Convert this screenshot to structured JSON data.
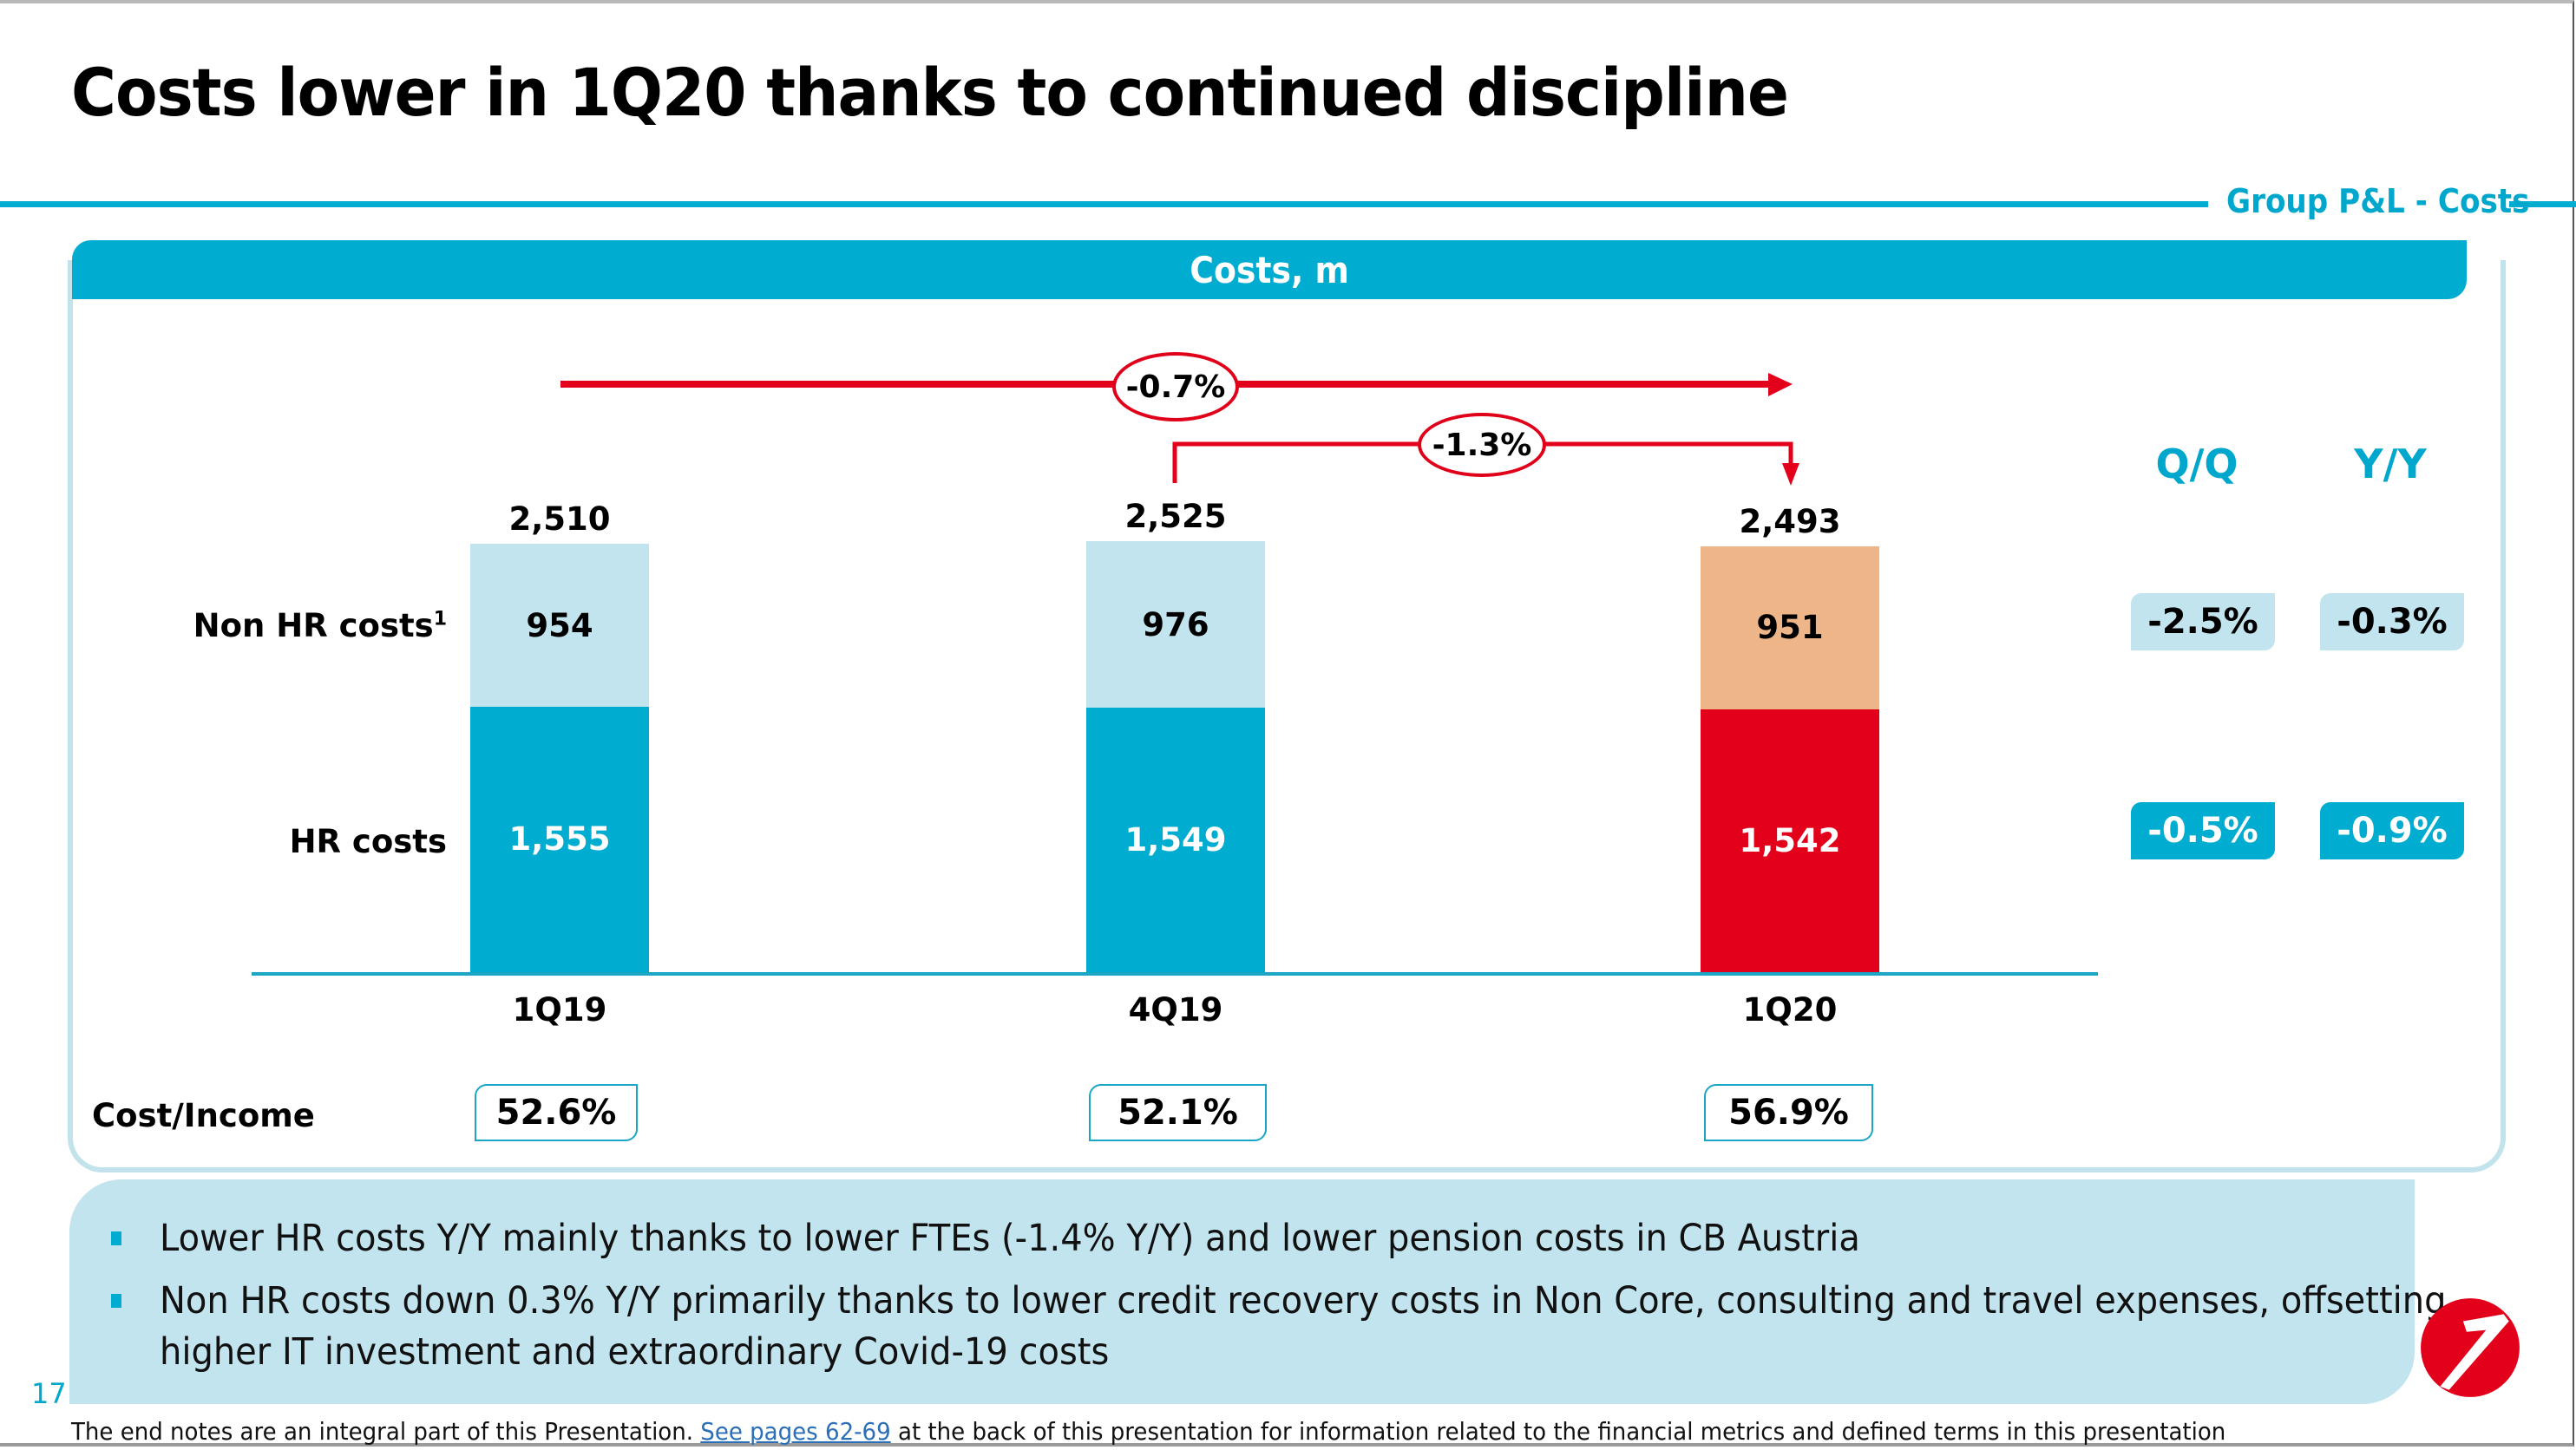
{
  "slide": {
    "title": "Costs lower in 1Q20 thanks to continued discipline",
    "section_label": "Group P&L - Costs",
    "page_number": "17"
  },
  "chart_header": "Costs, m",
  "chart_data": {
    "type": "bar",
    "stacked": true,
    "title": "Costs, m",
    "categories": [
      "1Q19",
      "4Q19",
      "1Q20"
    ],
    "series": [
      {
        "name": "HR costs",
        "values": [
          1555,
          1549,
          1542
        ],
        "value_labels": [
          "1,555",
          "1,549",
          "1,542"
        ],
        "colors": [
          "#00acd0",
          "#00acd0",
          "#e2001a"
        ]
      },
      {
        "name": "Non HR costs",
        "footnote_marker": "1",
        "values": [
          954,
          976,
          951
        ],
        "value_labels": [
          "954",
          "976",
          "951"
        ],
        "colors": [
          "#c2e4ee",
          "#c2e4ee",
          "#eeb589"
        ]
      }
    ],
    "totals": [
      2510,
      2525,
      2493
    ],
    "total_labels": [
      "2,510",
      "2,525",
      "2,493"
    ],
    "xlabel": "",
    "ylabel": "",
    "ylim": [
      0,
      2800
    ],
    "grid": false,
    "legend": "left (row labels)",
    "annotations": [
      {
        "label": "-0.7%",
        "from": "1Q19",
        "to": "1Q20",
        "style": "horizontal arrow"
      },
      {
        "label": "-1.3%",
        "from": "4Q19",
        "to": "1Q20",
        "style": "bracket arrow"
      }
    ],
    "row_labels": {
      "non_hr": "Non HR costs",
      "non_hr_sup": "1",
      "hr": "HR costs"
    }
  },
  "cost_income": {
    "label": "Cost/Income",
    "values": [
      "52.6%",
      "52.1%",
      "56.9%"
    ]
  },
  "changes": {
    "headers": {
      "qq": "Q/Q",
      "yy": "Y/Y"
    },
    "non_hr": {
      "qq": "-2.5%",
      "yy": "-0.3%"
    },
    "hr": {
      "qq": "-0.5%",
      "yy": "-0.9%"
    }
  },
  "bullets": [
    "Lower HR costs Y/Y mainly thanks to lower FTEs (-1.4% Y/Y) and lower pension costs in CB Austria",
    "Non HR costs down 0.3% Y/Y primarily thanks to lower credit recovery costs in Non Core, consulting and travel expenses, offsetting",
    "higher IT investment and extraordinary Covid-19 costs"
  ],
  "footnote": {
    "before": "The end notes are an integral part of this Presentation. ",
    "link": "See pages 62-69",
    "after": " at the back of this presentation for information related to the financial metrics and defined terms in this presentation"
  },
  "colors": {
    "accent": "#00acd0",
    "light_accent": "#c2e4ee",
    "highlight_red": "#e2001a",
    "highlight_peach": "#eeb589"
  }
}
